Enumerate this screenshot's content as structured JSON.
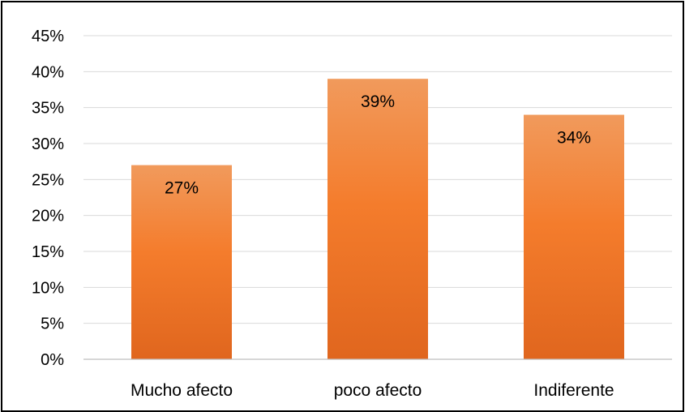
{
  "chart_data": {
    "type": "bar",
    "categories": [
      "Mucho afecto",
      "poco afecto",
      "Indiferente"
    ],
    "values": [
      27,
      39,
      34
    ],
    "value_format": "percent",
    "data_labels": [
      "27%",
      "39%",
      "34%"
    ],
    "y_ticks": [
      "0%",
      "5%",
      "10%",
      "15%",
      "20%",
      "25%",
      "30%",
      "35%",
      "40%",
      "45%"
    ],
    "ylim": [
      0,
      45
    ],
    "ystep": 5,
    "grid": true,
    "legend": "none",
    "title": "",
    "xlabel": "",
    "ylabel": "",
    "colors": {
      "bar_top": "#F19A5C",
      "bar_mid": "#F47C2C",
      "bar_bottom": "#E0661E",
      "grid": "#D9D9D9",
      "axis": "#BFBFBF",
      "frame": "#000000"
    }
  }
}
